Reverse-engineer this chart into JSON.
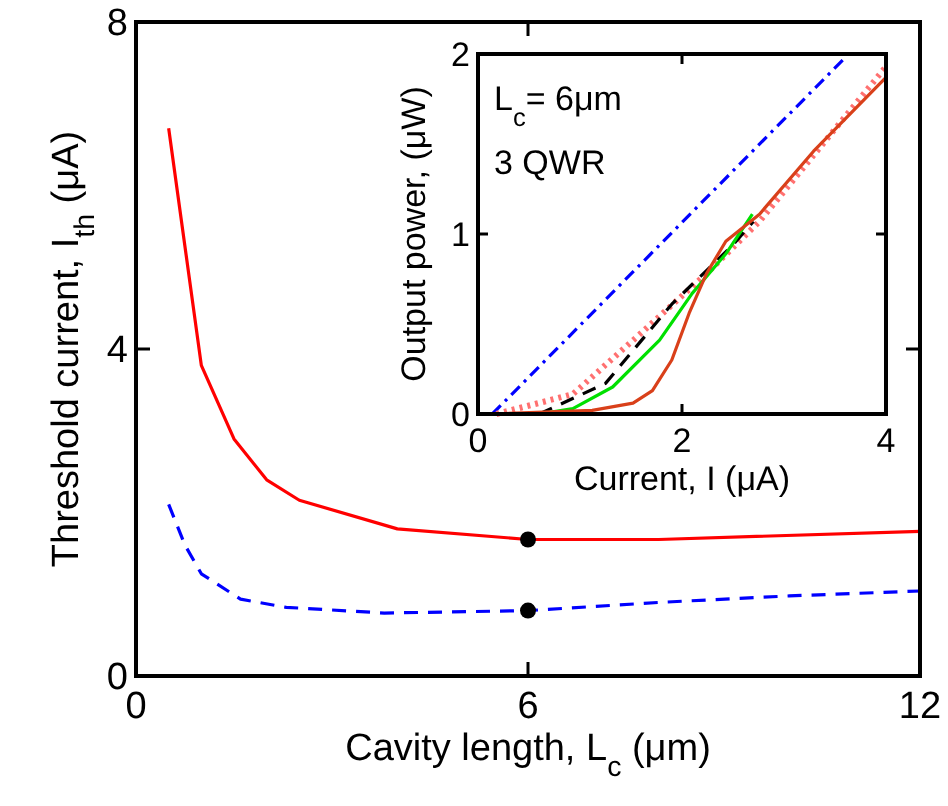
{
  "chart_data": [
    {
      "type": "line",
      "xlabel": "Cavity length, L$_{c}$ (μm)",
      "ylabel": "Threshold current, I$_{th}$ (μA)",
      "xlim": [
        0,
        12
      ],
      "ylim": [
        0,
        8
      ],
      "xticks": [
        0,
        6,
        12
      ],
      "yticks": [
        0,
        4,
        8
      ],
      "grid": false,
      "series": [
        {
          "color": "#ff0000",
          "line_style": "solid",
          "x": [
            0.5,
            1.0,
            1.5,
            2.0,
            2.5,
            4.0,
            6.0,
            8.0,
            12.0
          ],
          "values": [
            6.7,
            3.8,
            2.9,
            2.4,
            2.15,
            1.8,
            1.67,
            1.67,
            1.77
          ]
        },
        {
          "color": "#0000ff",
          "line_style": "dashed",
          "x": [
            0.5,
            0.75,
            1.0,
            1.6,
            2.3,
            3.8,
            6.0,
            8.0,
            10.0,
            12.0
          ],
          "values": [
            2.1,
            1.6,
            1.25,
            0.94,
            0.84,
            0.77,
            0.8,
            0.9,
            0.98,
            1.04
          ]
        },
        {
          "type": "scatter",
          "marker": "circle",
          "color": "#000000",
          "x": [
            6,
            6
          ],
          "values": [
            1.67,
            0.8
          ]
        }
      ]
    },
    {
      "type": "line",
      "xlabel": "Current, I (μA)",
      "ylabel": "Output power, (μW)",
      "xlim": [
        0,
        4
      ],
      "ylim": [
        0,
        2
      ],
      "xticks": [
        0,
        2,
        4
      ],
      "yticks": [
        0,
        1,
        2
      ],
      "grid": false,
      "annotations": [
        "L$_{c}$= 6μm",
        "3 QWR"
      ],
      "series": [
        {
          "color": "#0000ff",
          "line_style": "dashdot",
          "x": [
            0.14,
            3.6
          ],
          "values": [
            0,
            1.98
          ]
        },
        {
          "color": "#ff7070",
          "line_style": "dotted",
          "x": [
            0.18,
            0.93,
            1.58,
            2.24,
            2.76,
            4.0
          ],
          "values": [
            0,
            0.11,
            0.44,
            0.78,
            1.07,
            1.93
          ]
        },
        {
          "color": "#000000",
          "line_style": "dashed",
          "x": [
            0.6,
            1.25,
            1.9,
            2.5,
            2.7
          ],
          "values": [
            0,
            0.17,
            0.61,
            0.94,
            1.07
          ]
        },
        {
          "color": "#00e000",
          "line_style": "solid",
          "x": [
            0.6,
            0.93,
            1.32,
            1.78,
            2.1,
            2.43,
            2.69
          ],
          "values": [
            0,
            0.03,
            0.15,
            0.41,
            0.67,
            0.89,
            1.11
          ]
        },
        {
          "color": "#d9401a",
          "line_style": "solid",
          "x": [
            0.14,
            1.12,
            1.52,
            1.71,
            1.9,
            2.07,
            2.24,
            2.43,
            2.76,
            3.29,
            4.0
          ],
          "values": [
            0,
            0.02,
            0.06,
            0.13,
            0.3,
            0.56,
            0.78,
            0.96,
            1.11,
            1.46,
            1.87
          ]
        }
      ]
    }
  ]
}
